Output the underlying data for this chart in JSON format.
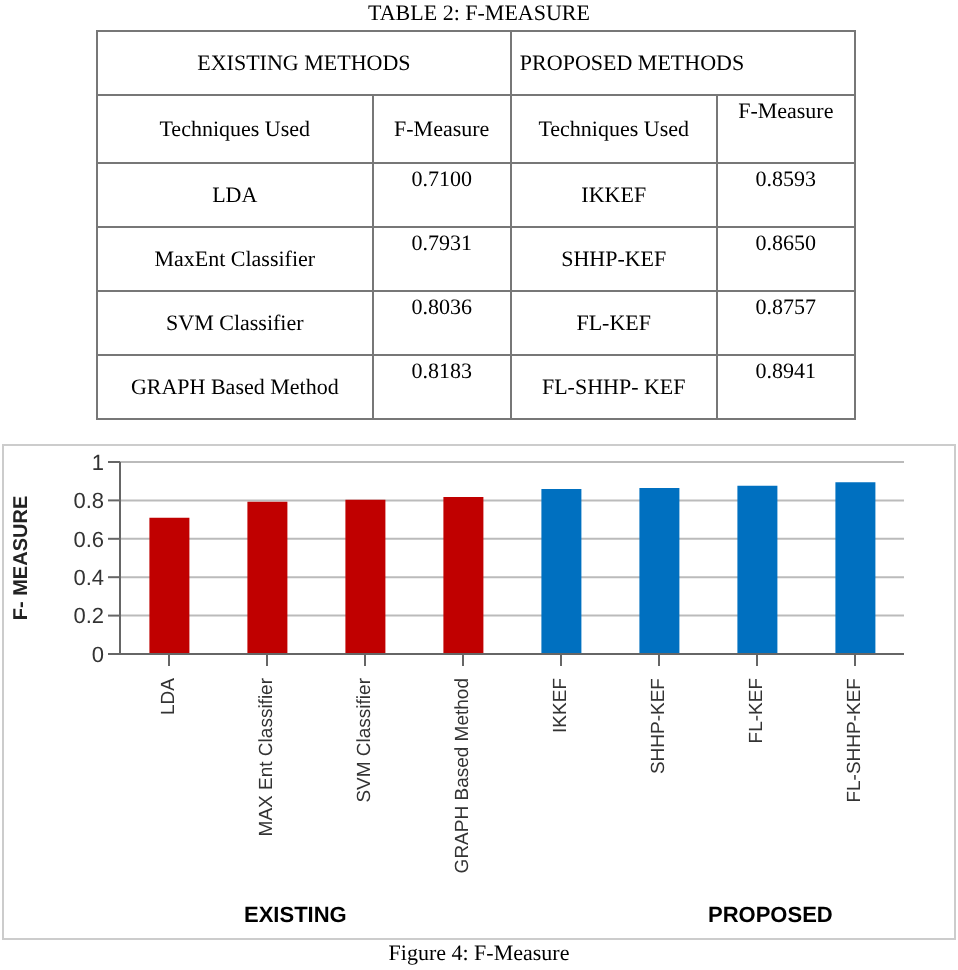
{
  "chart_data": {
    "type": "bar",
    "title": "TABLE 2: F-MEASURE",
    "ylabel": "F- MEASURE",
    "categories": [
      "LDA",
      "MAX Ent Classifier",
      "SVM Classifier",
      "GRAPH Based Method",
      "IKKEF",
      "SHHP-KEF",
      "FL-KEF",
      "FL-SHHP-KEF"
    ],
    "values": [
      0.71,
      0.7931,
      0.8036,
      0.8183,
      0.8593,
      0.865,
      0.8757,
      0.8941
    ],
    "colors": [
      "#c00000",
      "#c00000",
      "#c00000",
      "#c00000",
      "#0070c0",
      "#0070c0",
      "#0070c0",
      "#0070c0"
    ],
    "ylim": [
      0,
      1
    ],
    "yticks": [
      0,
      0.2,
      0.4,
      0.6,
      0.8,
      1
    ],
    "grid": "y",
    "annotations": [
      "EXISTING METHODS",
      "PROPOSED METHODS",
      "Techniques  Used",
      "F-Measure",
      "Techniques Used",
      "F-Measure",
      "LDA",
      "MaxEnt Classifier",
      "SVM Classifier",
      "GRAPH Based Method",
      "IKKEF",
      "SHHP-KEF",
      "FL-KEF",
      "FL-SHHP- KEF",
      "EXISTING",
      "PROPOSED",
      "Figure 4: F-Measure",
      "0.7100",
      "0.7931",
      "0.8036",
      "0.8183",
      "0.8593",
      "0.8650",
      "0.8757",
      "0.8941"
    ]
  }
}
